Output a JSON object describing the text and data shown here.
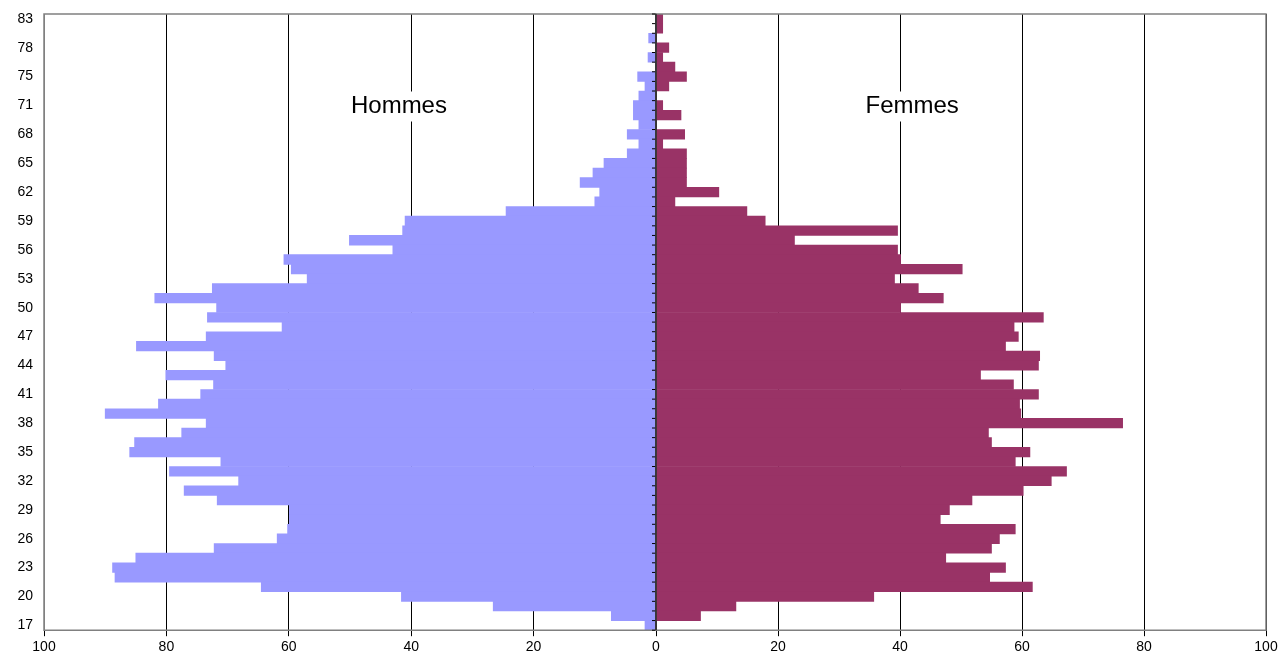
{
  "chart_data": [
    {
      "type": "bar",
      "orientation": "horizontal",
      "grid": "x",
      "categories": [
        "83",
        null,
        null,
        "78",
        null,
        null,
        "75",
        null,
        null,
        "71",
        null,
        null,
        "68",
        null,
        null,
        "65",
        null,
        null,
        "62",
        null,
        null,
        "59",
        null,
        null,
        "56",
        null,
        null,
        "53",
        null,
        null,
        "50",
        null,
        null,
        "47",
        null,
        null,
        "44",
        null,
        null,
        "41",
        null,
        null,
        "38",
        null,
        null,
        "35",
        null,
        null,
        "32",
        null,
        null,
        "29",
        null,
        null,
        "26",
        null,
        null,
        "23",
        null,
        null,
        "20",
        null,
        null,
        "17"
      ],
      "xlim": [
        100,
        0
      ],
      "xticks": [
        100,
        80,
        60,
        40,
        20
      ],
      "series": [
        {
          "name": "Hommes",
          "color": "#9999ff",
          "values": [
            0,
            0,
            1.2,
            0,
            1.3,
            0,
            3.0,
            1.8,
            2.8,
            3.7,
            3.7,
            2.8,
            4.7,
            2.8,
            4.7,
            8.5,
            10.3,
            12.4,
            9.2,
            10.0,
            24.5,
            41.0,
            41.4,
            50.1,
            43.0,
            60.8,
            59.6,
            57.0,
            72.5,
            81.9,
            71.8,
            73.3,
            61.1,
            73.5,
            84.9,
            72.2,
            70.3,
            80.1,
            72.3,
            74.4,
            81.3,
            90.0,
            73.5,
            77.5,
            85.2,
            86.0,
            71.1,
            79.5,
            68.2,
            77.1,
            71.7,
            59.9,
            59.9,
            60.2,
            61.9,
            72.2,
            85.0,
            88.8,
            88.4,
            64.5,
            41.6,
            26.6,
            7.3,
            1.8
          ]
        }
      ]
    },
    {
      "type": "bar",
      "orientation": "horizontal",
      "grid": "x",
      "tick_labels": "x",
      "categories": [
        "83",
        null,
        null,
        "78",
        null,
        null,
        "75",
        null,
        null,
        "71",
        null,
        null,
        "68",
        null,
        null,
        "65",
        null,
        null,
        "62",
        null,
        null,
        "59",
        null,
        null,
        "56",
        null,
        null,
        "53",
        null,
        null,
        "50",
        null,
        null,
        "47",
        null,
        null,
        "44",
        null,
        null,
        "41",
        null,
        null,
        "38",
        null,
        null,
        "35",
        null,
        null,
        "32",
        null,
        null,
        "29",
        null,
        null,
        "26",
        null,
        null,
        "23",
        null,
        null,
        "20",
        null,
        null,
        "17"
      ],
      "xlim": [
        0,
        100
      ],
      "xticks": [
        0,
        20,
        40,
        60,
        80,
        100
      ],
      "series": [
        {
          "name": "Femmes",
          "color": "#993366",
          "values": [
            1.1,
            1.1,
            0,
            2.1,
            1.1,
            3.1,
            5.0,
            2.1,
            0,
            1.1,
            4.1,
            0,
            4.7,
            1.1,
            5.0,
            5.0,
            5.0,
            5.0,
            10.3,
            3.1,
            14.9,
            17.9,
            39.6,
            22.7,
            39.6,
            40.1,
            50.2,
            39.1,
            43.0,
            47.1,
            40.1,
            63.5,
            58.7,
            59.4,
            57.3,
            62.9,
            62.7,
            53.2,
            58.6,
            62.7,
            59.6,
            59.8,
            76.5,
            54.5,
            55.0,
            61.3,
            58.9,
            67.3,
            64.8,
            60.2,
            51.8,
            48.1,
            46.6,
            58.9,
            56.3,
            55.0,
            47.5,
            57.3,
            54.7,
            61.7,
            35.7,
            13.1,
            7.3,
            0
          ]
        }
      ]
    }
  ]
}
